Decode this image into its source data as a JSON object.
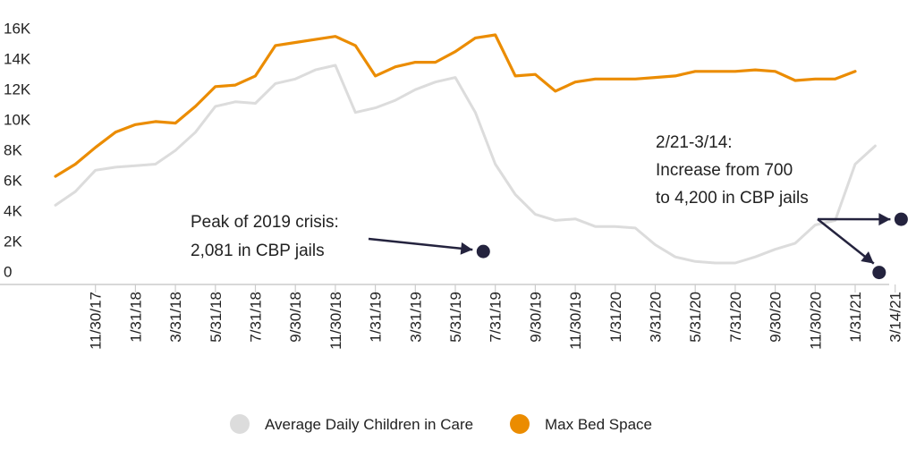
{
  "chart_data": {
    "type": "line",
    "title": "",
    "xlabel": "",
    "ylabel": "",
    "ylim": [
      0,
      16000
    ],
    "yticks": [
      {
        "value": 0,
        "label": "0"
      },
      {
        "value": 2000,
        "label": "2K"
      },
      {
        "value": 4000,
        "label": "4K"
      },
      {
        "value": 6000,
        "label": "6K"
      },
      {
        "value": 8000,
        "label": "8K"
      },
      {
        "value": 10000,
        "label": "10K"
      },
      {
        "value": 12000,
        "label": "12K"
      },
      {
        "value": 14000,
        "label": "14K"
      },
      {
        "value": 16000,
        "label": "16K"
      }
    ],
    "xticks": [
      {
        "index": 2,
        "label": "11/30/17"
      },
      {
        "index": 4,
        "label": "1/31/18"
      },
      {
        "index": 6,
        "label": "3/31/18"
      },
      {
        "index": 8,
        "label": "5/31/18"
      },
      {
        "index": 10,
        "label": "7/31/18"
      },
      {
        "index": 12,
        "label": "9/30/18"
      },
      {
        "index": 14,
        "label": "11/30/18"
      },
      {
        "index": 16,
        "label": "1/31/19"
      },
      {
        "index": 18,
        "label": "3/31/19"
      },
      {
        "index": 20,
        "label": "5/31/19"
      },
      {
        "index": 22,
        "label": "7/31/19"
      },
      {
        "index": 24,
        "label": "9/30/19"
      },
      {
        "index": 26,
        "label": "11/30/19"
      },
      {
        "index": 28,
        "label": "1/31/20"
      },
      {
        "index": 30,
        "label": "3/31/20"
      },
      {
        "index": 32,
        "label": "5/31/20"
      },
      {
        "index": 34,
        "label": "7/31/20"
      },
      {
        "index": 36,
        "label": "9/30/20"
      },
      {
        "index": 38,
        "label": "11/30/20"
      },
      {
        "index": 40,
        "label": "1/31/21"
      },
      {
        "index": 42,
        "label": "3/14/21"
      }
    ],
    "series": [
      {
        "name": "Average Daily Children in Care",
        "color": "#dcdcdc",
        "values": [
          4300,
          5200,
          6600,
          6800,
          6900,
          7000,
          7900,
          9100,
          10800,
          11100,
          11000,
          12300,
          12600,
          13200,
          13500,
          10400,
          10700,
          11200,
          11900,
          12400,
          12700,
          10400,
          7000,
          5000,
          3700,
          3300,
          3400,
          2900,
          2900,
          2800,
          1700,
          900,
          600,
          500,
          500,
          900,
          1400,
          1800,
          3000,
          3300,
          7000,
          8200
        ]
      },
      {
        "name": "Max Bed Space",
        "color": "#eb8c00",
        "values": [
          6200,
          7000,
          8100,
          9100,
          9600,
          9800,
          9700,
          10800,
          12100,
          12200,
          12800,
          14800,
          15000,
          15200,
          15400,
          14800,
          12800,
          13400,
          13700,
          13700,
          14400,
          15300,
          15500,
          12800,
          12900,
          11800,
          12400,
          12600,
          12600,
          12600,
          12700,
          12800,
          13100,
          13100,
          13100,
          13200,
          13100,
          12500,
          12600,
          12600,
          13100
        ]
      }
    ],
    "legend": {
      "placement": "bottom-center"
    },
    "grid": false,
    "annotations": [
      {
        "lines": [
          "Peak of 2019 crisis:",
          "2,081 in CBP jails"
        ],
        "point": {
          "x_index": 21.4,
          "y": 2081
        }
      },
      {
        "lines": [
          "2/21-3/14:",
          "Increase from 700",
          "to 4,200 in CBP jails"
        ],
        "points": [
          {
            "x_index": 41.2,
            "y": 700
          },
          {
            "x_index": 42.3,
            "y": 4200
          }
        ]
      }
    ],
    "marker_color": "#24233e"
  }
}
